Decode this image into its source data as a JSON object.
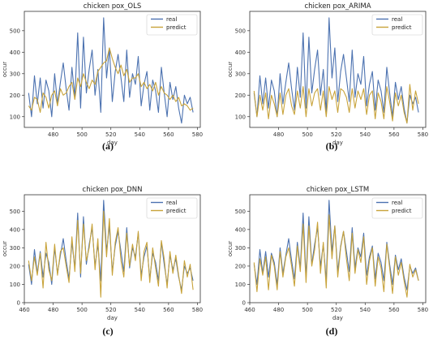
{
  "figure": {
    "captions": [
      "(a)",
      "(b)",
      "(c)",
      "(d)"
    ]
  },
  "chart_data": [
    {
      "type": "line",
      "title": "chicken pox_OLS",
      "xlabel": "day",
      "ylabel": "occur",
      "xlim": [
        460,
        582
      ],
      "ylim": [
        50,
        590
      ],
      "xticks": [
        480,
        500,
        520,
        540,
        560,
        580
      ],
      "yticks": [
        100,
        200,
        300,
        400,
        500
      ],
      "legend_position": "top-right",
      "x": [
        463,
        465,
        467,
        469,
        471,
        473,
        475,
        477,
        479,
        481,
        483,
        485,
        487,
        489,
        491,
        493,
        495,
        497,
        499,
        501,
        503,
        505,
        507,
        509,
        511,
        513,
        515,
        517,
        519,
        521,
        523,
        525,
        527,
        529,
        531,
        533,
        535,
        537,
        539,
        541,
        543,
        545,
        547,
        549,
        551,
        553,
        555,
        557,
        559,
        561,
        563,
        565,
        567,
        569,
        571,
        573,
        575,
        577
      ],
      "series": [
        {
          "name": "real",
          "color": "#4c72b0",
          "values": [
            210,
            100,
            290,
            160,
            280,
            140,
            270,
            220,
            100,
            300,
            160,
            260,
            350,
            230,
            130,
            330,
            190,
            490,
            140,
            470,
            210,
            320,
            410,
            200,
            320,
            120,
            560,
            280,
            420,
            170,
            310,
            390,
            280,
            170,
            410,
            190,
            300,
            250,
            380,
            150,
            250,
            310,
            130,
            270,
            220,
            120,
            330,
            210,
            100,
            260,
            180,
            240,
            140,
            70,
            200,
            160,
            190,
            120
          ]
        },
        {
          "name": "predict",
          "color": "#c8a33a",
          "values": [
            150,
            130,
            190,
            180,
            120,
            210,
            190,
            140,
            200,
            220,
            150,
            230,
            200,
            210,
            240,
            260,
            180,
            280,
            240,
            300,
            260,
            230,
            270,
            250,
            310,
            330,
            350,
            360,
            420,
            370,
            330,
            300,
            340,
            290,
            320,
            260,
            280,
            280,
            300,
            240,
            260,
            230,
            250,
            220,
            260,
            200,
            240,
            210,
            200,
            180,
            200,
            170,
            190,
            150,
            160,
            150,
            130,
            140
          ]
        }
      ]
    },
    {
      "type": "line",
      "title": "chicken pox_ARIMA",
      "xlabel": "day",
      "ylabel": "occur",
      "xlim": [
        460,
        582
      ],
      "ylim": [
        50,
        590
      ],
      "xticks": [
        480,
        500,
        520,
        540,
        560,
        580
      ],
      "yticks": [
        100,
        200,
        300,
        400,
        500
      ],
      "legend_position": "top-right",
      "x": [
        463,
        465,
        467,
        469,
        471,
        473,
        475,
        477,
        479,
        481,
        483,
        485,
        487,
        489,
        491,
        493,
        495,
        497,
        499,
        501,
        503,
        505,
        507,
        509,
        511,
        513,
        515,
        517,
        519,
        521,
        523,
        525,
        527,
        529,
        531,
        533,
        535,
        537,
        539,
        541,
        543,
        545,
        547,
        549,
        551,
        553,
        555,
        557,
        559,
        561,
        563,
        565,
        567,
        569,
        571,
        573,
        575,
        577
      ],
      "series": [
        {
          "name": "real",
          "color": "#4c72b0",
          "values": [
            210,
            100,
            290,
            160,
            280,
            140,
            270,
            220,
            100,
            300,
            160,
            260,
            350,
            230,
            130,
            330,
            190,
            490,
            140,
            470,
            210,
            320,
            410,
            200,
            320,
            120,
            560,
            280,
            420,
            170,
            310,
            390,
            280,
            170,
            410,
            190,
            300,
            250,
            380,
            150,
            250,
            310,
            130,
            270,
            220,
            120,
            330,
            210,
            100,
            260,
            180,
            240,
            140,
            70,
            200,
            160,
            190,
            120
          ]
        },
        {
          "name": "predict",
          "color": "#c8a33a",
          "values": [
            220,
            100,
            200,
            130,
            210,
            90,
            200,
            160,
            100,
            210,
            110,
            200,
            230,
            150,
            110,
            220,
            140,
            240,
            100,
            230,
            150,
            210,
            230,
            130,
            220,
            100,
            240,
            180,
            220,
            120,
            230,
            220,
            190,
            120,
            230,
            140,
            220,
            180,
            230,
            110,
            200,
            220,
            90,
            210,
            170,
            90,
            240,
            170,
            80,
            210,
            150,
            200,
            120,
            70,
            250,
            130,
            220,
            160
          ]
        }
      ]
    },
    {
      "type": "line",
      "title": "chicken pox_DNN",
      "xlabel": "day",
      "ylabel": "occur",
      "xlim": [
        460,
        582
      ],
      "ylim": [
        0,
        590
      ],
      "xticks": [
        460,
        480,
        500,
        520,
        540,
        560,
        580
      ],
      "yticks": [
        0,
        100,
        200,
        300,
        400,
        500
      ],
      "legend_position": "top-right",
      "x": [
        463,
        465,
        467,
        469,
        471,
        473,
        475,
        477,
        479,
        481,
        483,
        485,
        487,
        489,
        491,
        493,
        495,
        497,
        499,
        501,
        503,
        505,
        507,
        509,
        511,
        513,
        515,
        517,
        519,
        521,
        523,
        525,
        527,
        529,
        531,
        533,
        535,
        537,
        539,
        541,
        543,
        545,
        547,
        549,
        551,
        553,
        555,
        557,
        559,
        561,
        563,
        565,
        567,
        569,
        571,
        573,
        575,
        577
      ],
      "series": [
        {
          "name": "real",
          "color": "#4c72b0",
          "values": [
            210,
            100,
            290,
            160,
            280,
            140,
            270,
            220,
            100,
            300,
            160,
            260,
            350,
            230,
            130,
            330,
            190,
            490,
            140,
            470,
            210,
            320,
            410,
            200,
            320,
            120,
            560,
            280,
            420,
            170,
            310,
            390,
            280,
            170,
            410,
            190,
            300,
            250,
            380,
            150,
            250,
            310,
            130,
            270,
            220,
            120,
            330,
            210,
            100,
            260,
            180,
            240,
            140,
            70,
            200,
            160,
            190,
            120
          ]
        },
        {
          "name": "predict",
          "color": "#c8a33a",
          "values": [
            230,
            120,
            250,
            150,
            270,
            80,
            330,
            180,
            120,
            320,
            150,
            280,
            300,
            200,
            110,
            360,
            170,
            450,
            160,
            430,
            230,
            300,
            430,
            180,
            350,
            30,
            500,
            250,
            460,
            150,
            330,
            410,
            230,
            140,
            380,
            200,
            320,
            230,
            390,
            120,
            280,
            330,
            110,
            300,
            190,
            90,
            340,
            240,
            80,
            280,
            160,
            260,
            150,
            50,
            230,
            140,
            210,
            70
          ]
        }
      ]
    },
    {
      "type": "line",
      "title": "chicken pox_LSTM",
      "xlabel": "day",
      "ylabel": "occur",
      "xlim": [
        460,
        582
      ],
      "ylim": [
        0,
        590
      ],
      "xticks": [
        460,
        480,
        500,
        520,
        540,
        560,
        580
      ],
      "yticks": [
        0,
        100,
        200,
        300,
        400,
        500
      ],
      "legend_position": "top-right",
      "x": [
        463,
        465,
        467,
        469,
        471,
        473,
        475,
        477,
        479,
        481,
        483,
        485,
        487,
        489,
        491,
        493,
        495,
        497,
        499,
        501,
        503,
        505,
        507,
        509,
        511,
        513,
        515,
        517,
        519,
        521,
        523,
        525,
        527,
        529,
        531,
        533,
        535,
        537,
        539,
        541,
        543,
        545,
        547,
        549,
        551,
        553,
        555,
        557,
        559,
        561,
        563,
        565,
        567,
        569,
        571,
        573,
        575,
        577
      ],
      "series": [
        {
          "name": "real",
          "color": "#4c72b0",
          "values": [
            210,
            100,
            290,
            160,
            280,
            140,
            270,
            220,
            100,
            300,
            160,
            260,
            350,
            230,
            130,
            330,
            190,
            490,
            140,
            470,
            210,
            320,
            410,
            200,
            320,
            120,
            560,
            280,
            420,
            170,
            310,
            390,
            280,
            170,
            410,
            190,
            300,
            250,
            380,
            150,
            250,
            310,
            130,
            270,
            220,
            120,
            330,
            210,
            100,
            260,
            180,
            240,
            140,
            70,
            200,
            160,
            190,
            120
          ]
        },
        {
          "name": "predict",
          "color": "#c8a33a",
          "values": [
            220,
            60,
            240,
            150,
            250,
            70,
            260,
            200,
            70,
            280,
            140,
            250,
            300,
            200,
            90,
            310,
            170,
            430,
            110,
            420,
            200,
            290,
            440,
            160,
            330,
            80,
            480,
            240,
            420,
            140,
            300,
            390,
            240,
            120,
            380,
            160,
            290,
            220,
            360,
            100,
            230,
            300,
            90,
            250,
            190,
            60,
            320,
            190,
            50,
            250,
            150,
            220,
            120,
            30,
            210,
            140,
            180,
            120
          ]
        }
      ]
    }
  ]
}
